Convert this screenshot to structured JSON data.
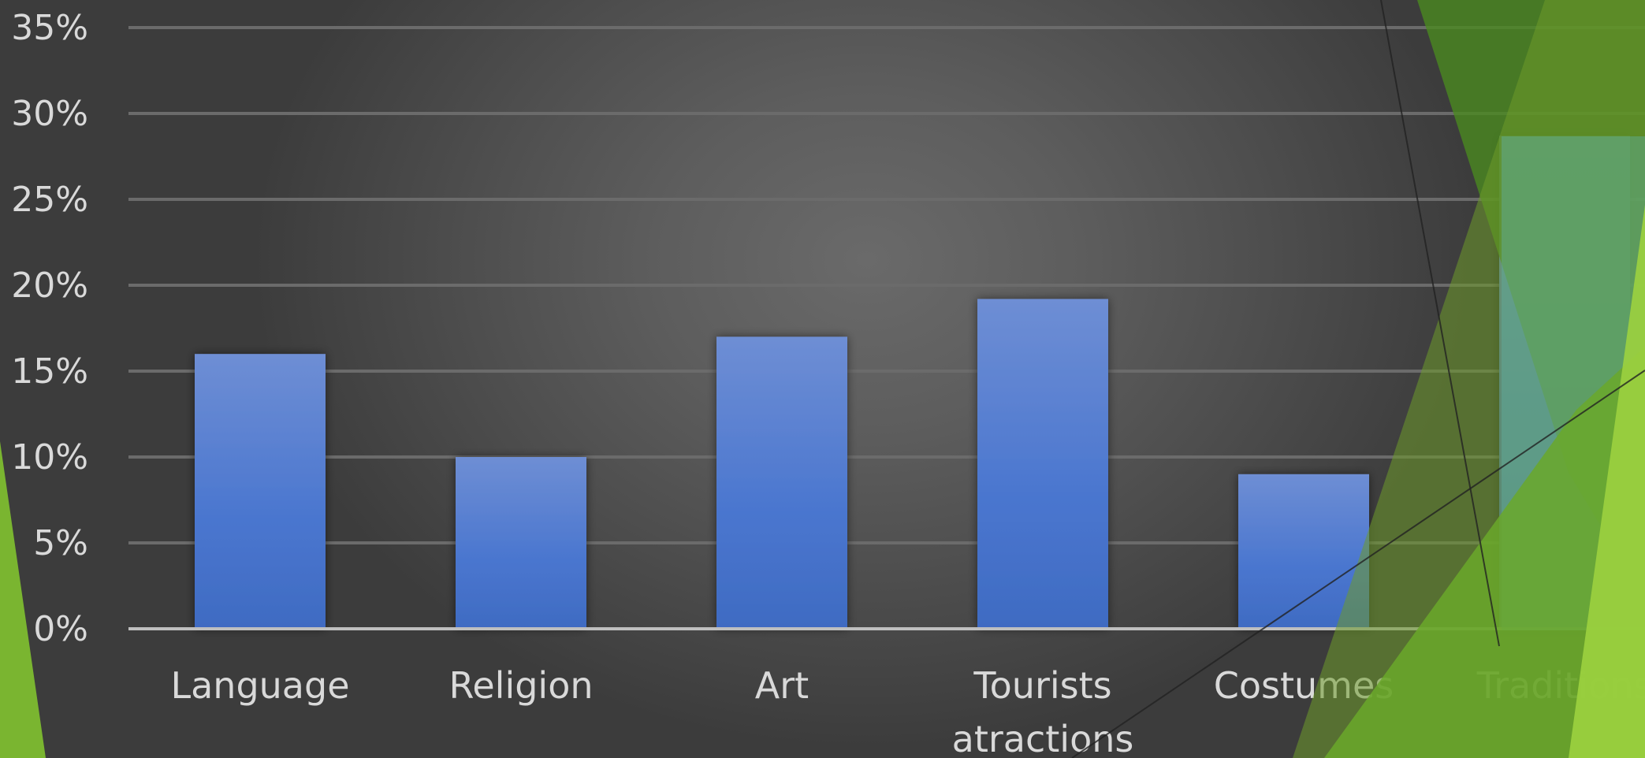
{
  "colors": {
    "background": "#4f4f4f",
    "bar_top": "#6e8ed4",
    "bar_bottom": "#3f6dc4",
    "gridline": "#6b6b6b",
    "axis_line": "#bfbfbf",
    "label_text": "#d9d9d9",
    "accent_green_dark": "#4f8f22",
    "accent_green_light": "#8cc63f"
  },
  "chart_data": {
    "type": "bar",
    "categories": [
      "Language",
      "Religion",
      "Art",
      "Tourists atractions",
      "Costumes",
      "Traditions"
    ],
    "category_lines": [
      [
        "Language"
      ],
      [
        "Religion"
      ],
      [
        "Art"
      ],
      [
        "Tourists",
        "atractions"
      ],
      [
        "Costumes"
      ],
      [
        "Traditions"
      ]
    ],
    "series": [
      {
        "values": [
          16,
          10,
          17,
          19.2,
          9,
          28.7
        ]
      }
    ],
    "y_ticks": [
      "0%",
      "5%",
      "10%",
      "15%",
      "20%",
      "25%",
      "30%",
      "35%"
    ],
    "ylim": [
      0,
      35
    ],
    "y_unit": "%",
    "grid": true,
    "title": "",
    "xlabel": "",
    "ylabel": ""
  }
}
